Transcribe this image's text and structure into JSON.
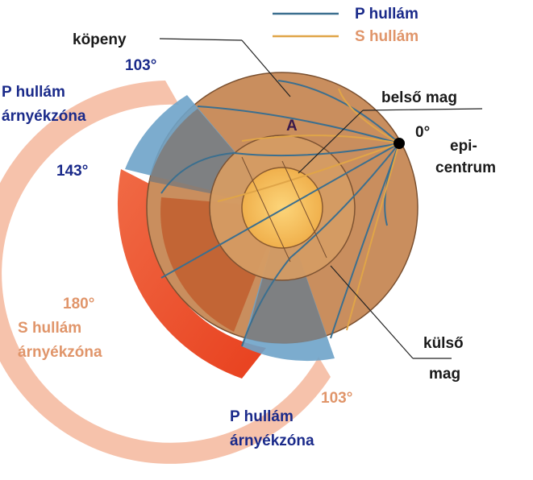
{
  "legend": {
    "p_wave": "P hullám",
    "s_wave": "S hullám",
    "p_color": "#3b6f8f",
    "s_color": "#e0a548"
  },
  "labels": {
    "mantle": "köpeny",
    "point_a": "A",
    "inner_core": "belső mag",
    "outer_core_line1": "külső",
    "outer_core_line2": "mag",
    "zero_deg": "0°",
    "epicenter_line1": "epi-",
    "epicenter_line2": "centrum",
    "deg_103_top": "103°",
    "deg_143": "143°",
    "deg_180": "180°",
    "deg_103_bottom": "103°",
    "p_shadow_top_line1": "P hullám",
    "p_shadow_top_line2": "árnyékzóna",
    "s_shadow_line1": "S hullám",
    "s_shadow_line2": "árnyékzóna",
    "p_shadow_bottom_line1": "P hullám",
    "p_shadow_bottom_line2": "árnyékzóna"
  },
  "colors": {
    "mantle": "#c98e5e",
    "outer_core": "#d9a06a",
    "inner_core": "#f4bf5c",
    "s_shadow": "#e8502e",
    "p_shadow": "#6ea3c9",
    "label_blue": "#1a2a8a",
    "label_orange": "#e0956a"
  }
}
